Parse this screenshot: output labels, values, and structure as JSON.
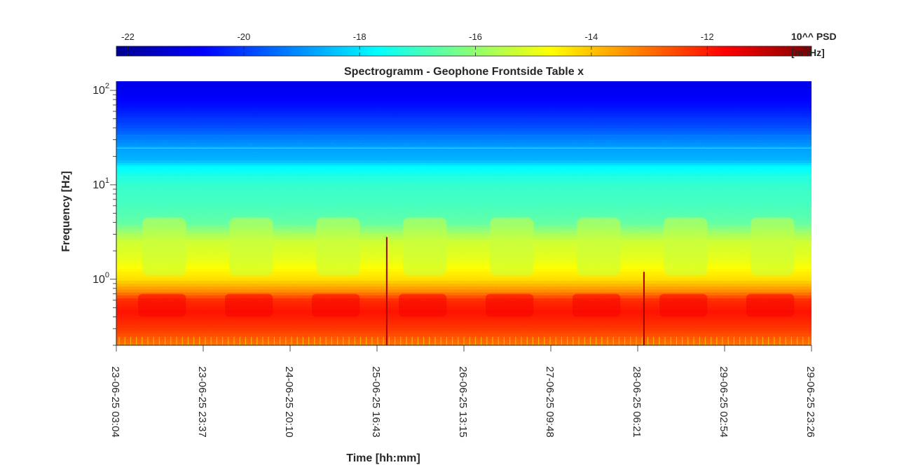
{
  "chart_data": {
    "type": "heatmap",
    "title": "Spectrogramm - Geophone Frontside Table x",
    "xlabel": "Time [hh:mm]",
    "ylabel": "Frequency [Hz]",
    "yscale": "log",
    "ylim": [
      0.2,
      125
    ],
    "y_ticks": [
      {
        "value": 1,
        "base": "10",
        "exp": "0"
      },
      {
        "value": 10,
        "base": "10",
        "exp": "1"
      },
      {
        "value": 100,
        "base": "10",
        "exp": "2"
      }
    ],
    "x_ticks": [
      "23-06-25 03:04",
      "23-06-25 23:37",
      "24-06-25 20:10",
      "25-06-25 16:43",
      "26-06-25 13:15",
      "27-06-25 09:48",
      "28-06-25 06:21",
      "29-06-25 02:54",
      "29-06-25 23:26"
    ],
    "colorbar": {
      "label_line1": "10^^ PSD",
      "label_line2_prefix": "[m",
      "label_line2_sup": "2",
      "label_line2_suffix": "/Hz]",
      "range": [
        -22.2,
        -10.2
      ],
      "ticks": [
        "-22",
        "-20",
        "-18",
        "-16",
        "-14",
        "-12"
      ],
      "tick_values": [
        -22,
        -20,
        -18,
        -16,
        -14,
        -12
      ],
      "colormap": "jet"
    },
    "grid": false,
    "spectral_levels": {
      "frequency_hz": [
        0.2,
        0.3,
        0.45,
        0.6,
        0.75,
        1.0,
        1.5,
        2.5,
        4.0,
        6.0,
        10,
        16,
        18,
        25,
        40,
        70,
        125
      ],
      "log10_psd": [
        -13.0,
        -12.3,
        -11.9,
        -12.2,
        -13.3,
        -14.3,
        -14.9,
        -15.3,
        -16.6,
        -16.9,
        -17.1,
        -17.8,
        -18.6,
        -18.9,
        -19.8,
        -20.6,
        -21.0
      ]
    },
    "transients": [
      "25-06-25 16:43",
      "28-06-25 06:21"
    ]
  }
}
